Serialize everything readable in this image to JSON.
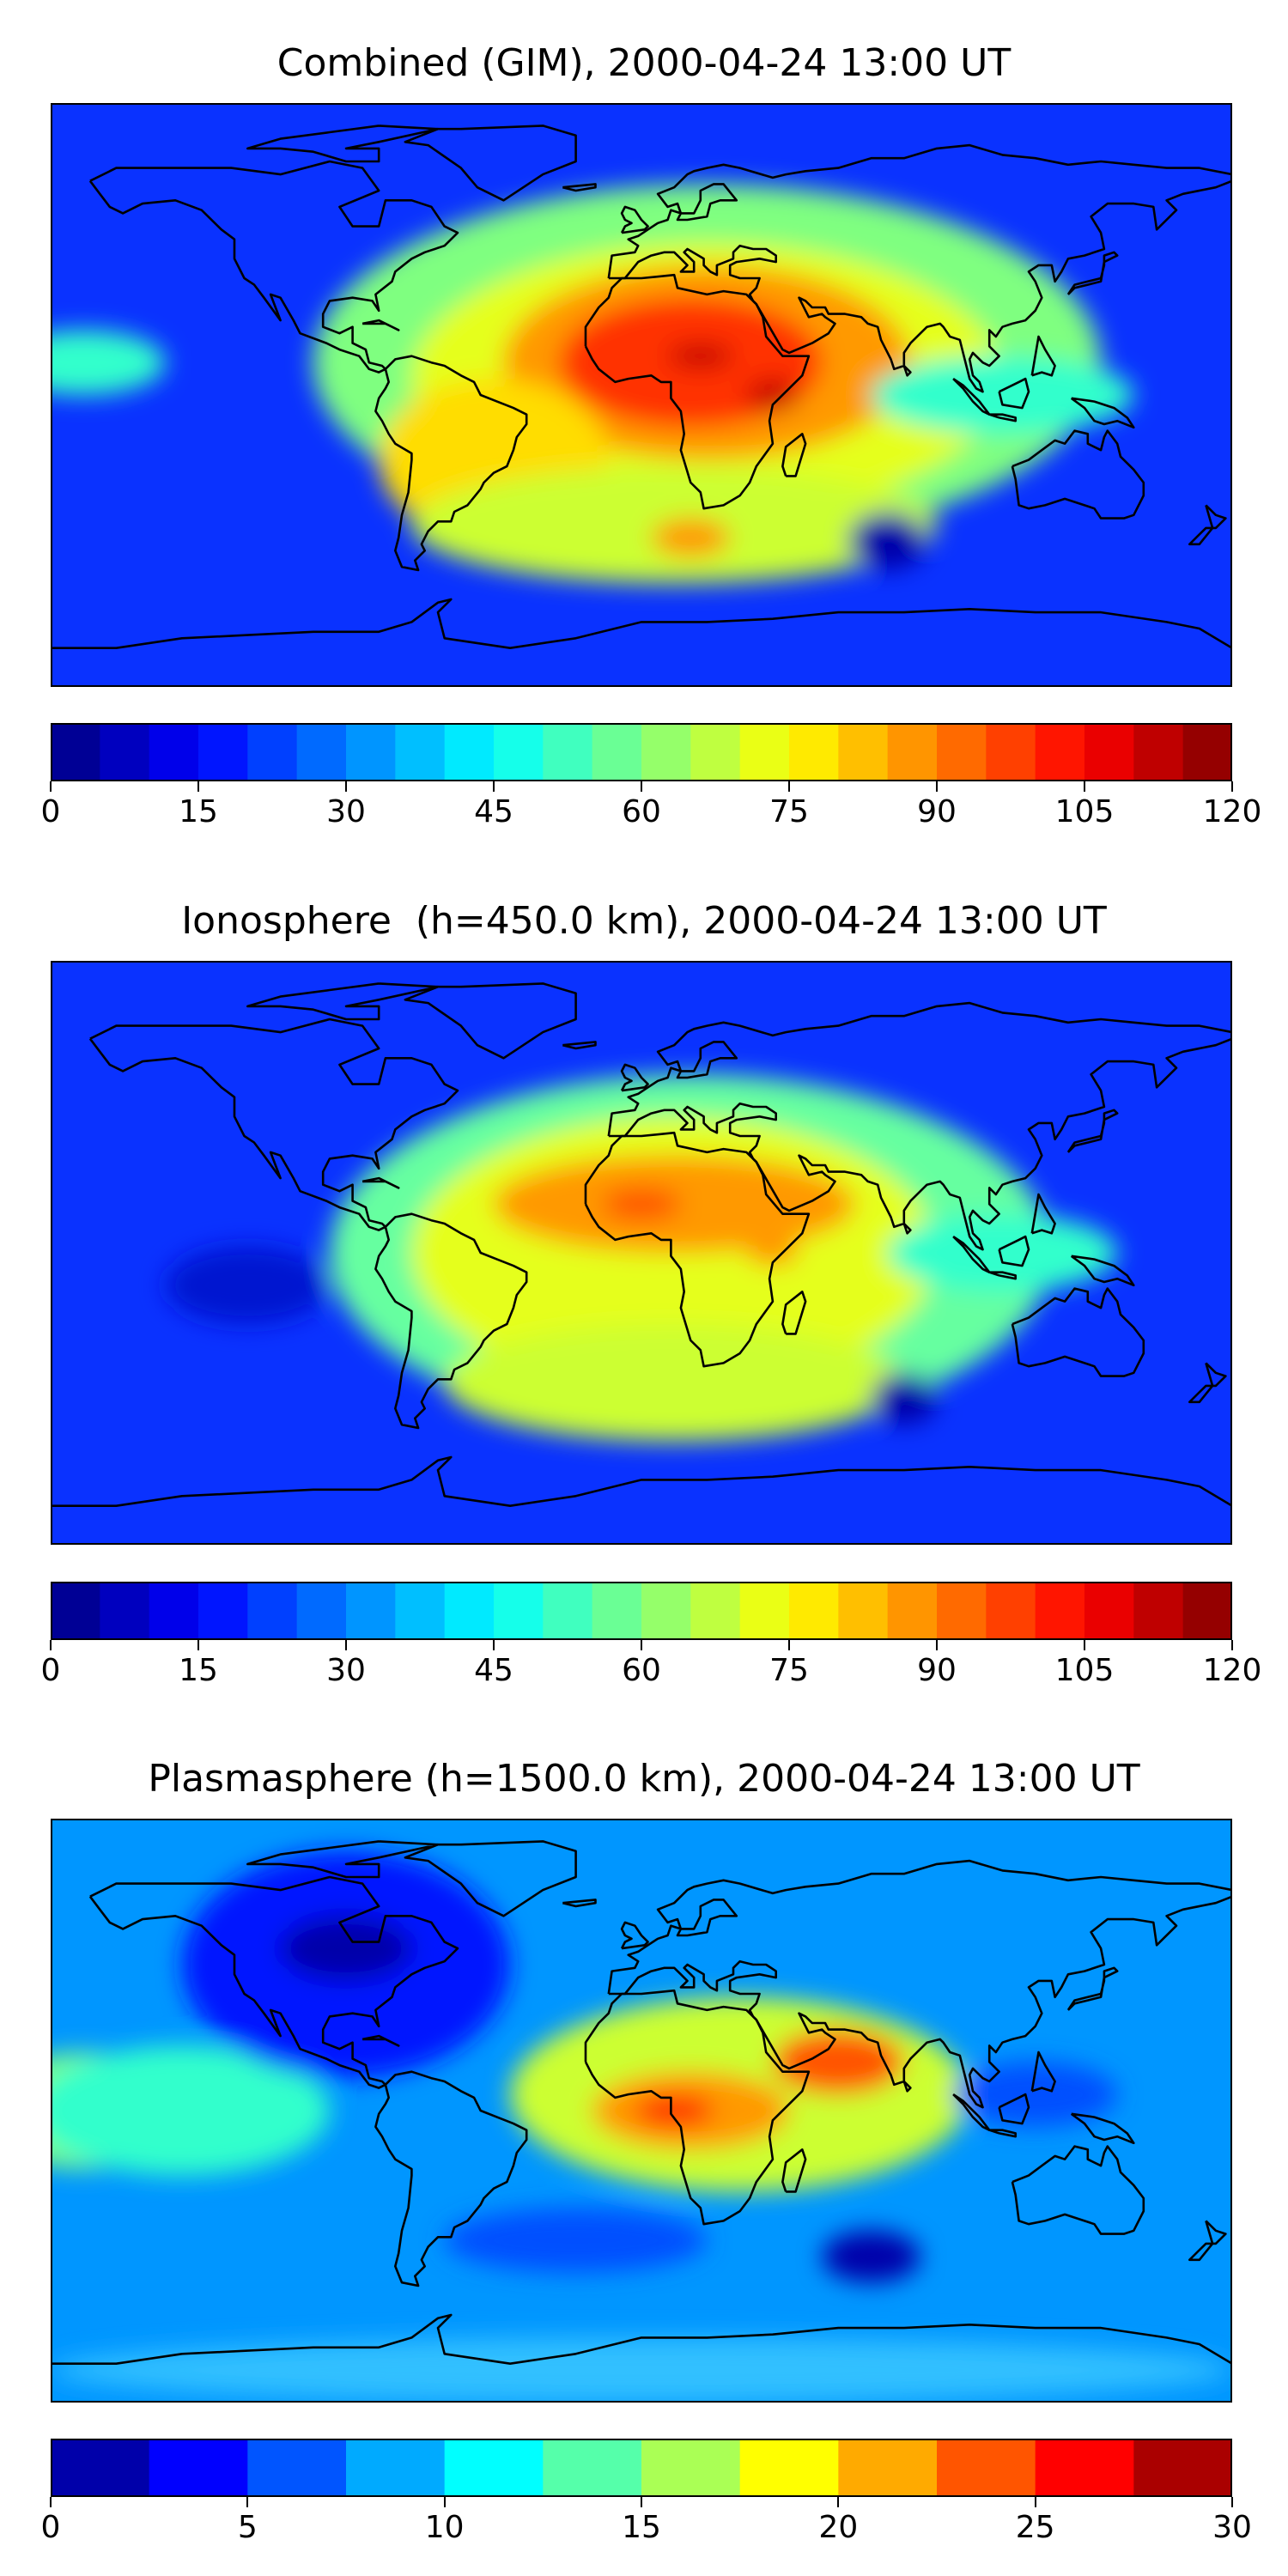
{
  "maps": [
    {
      "title": "Combined (GIM), 2000-04-24 13:00 UT",
      "colorbar": {
        "min": 0,
        "max": 120,
        "levels": 24,
        "tick_labels": [
          "0",
          "15",
          "30",
          "45",
          "60",
          "75",
          "90",
          "105",
          "120"
        ]
      },
      "background_color": "#0a32ff",
      "blobs": [
        {
          "lon": 20,
          "lat": 10,
          "rx": 120,
          "ry": 55,
          "color": "#7fff80"
        },
        {
          "lon": 20,
          "lat": 5,
          "rx": 90,
          "ry": 42,
          "color": "#e5ff1a"
        },
        {
          "lon": 20,
          "lat": 10,
          "rx": 62,
          "ry": 30,
          "color": "#ff9900"
        },
        {
          "lon": 15,
          "lat": 10,
          "rx": 40,
          "ry": 20,
          "color": "#ff3300"
        },
        {
          "lon": 18,
          "lat": 12,
          "rx": 10,
          "ry": 4,
          "color": "#c80000"
        },
        {
          "lon": 40,
          "lat": 0,
          "rx": 8,
          "ry": 5,
          "color": "#c80000"
        },
        {
          "lon": -45,
          "lat": -20,
          "rx": 35,
          "ry": 25,
          "color": "#ffdd00"
        },
        {
          "lon": 10,
          "lat": -40,
          "rx": 80,
          "ry": 18,
          "color": "#ccff33"
        },
        {
          "lon": 15,
          "lat": -44,
          "rx": 12,
          "ry": 6,
          "color": "#ff9900"
        },
        {
          "lon": 110,
          "lat": 0,
          "rx": 40,
          "ry": 12,
          "color": "#33ffcc"
        },
        {
          "lon": -170,
          "lat": 10,
          "rx": 25,
          "ry": 10,
          "color": "#33ffcc"
        },
        {
          "lon": 75,
          "lat": -45,
          "rx": 12,
          "ry": 9,
          "color": "#0000aa"
        }
      ]
    },
    {
      "title": "Ionosphere  (h=450.0 km), 2000-04-24 13:00 UT",
      "colorbar": {
        "min": 0,
        "max": 120,
        "levels": 24,
        "tick_labels": [
          "0",
          "15",
          "30",
          "45",
          "60",
          "75",
          "90",
          "105",
          "120"
        ]
      },
      "background_color": "#0a32ff",
      "blobs": [
        {
          "lon": 15,
          "lat": 0,
          "rx": 110,
          "ry": 55,
          "color": "#66ffa0"
        },
        {
          "lon": 10,
          "lat": 0,
          "rx": 80,
          "ry": 42,
          "color": "#e5ff1a"
        },
        {
          "lon": 10,
          "lat": 15,
          "rx": 55,
          "ry": 15,
          "color": "#ff9900"
        },
        {
          "lon": 0,
          "lat": 15,
          "rx": 12,
          "ry": 5,
          "color": "#ff5500"
        },
        {
          "lon": 40,
          "lat": 0,
          "rx": 8,
          "ry": 4,
          "color": "#ff9900"
        },
        {
          "lon": 10,
          "lat": -40,
          "rx": 70,
          "ry": 18,
          "color": "#ccff33"
        },
        {
          "lon": 110,
          "lat": 0,
          "rx": 35,
          "ry": 12,
          "color": "#33ffcc"
        },
        {
          "lon": 80,
          "lat": -45,
          "rx": 10,
          "ry": 8,
          "color": "#0000aa"
        },
        {
          "lon": -120,
          "lat": -10,
          "rx": 25,
          "ry": 12,
          "color": "#0014d0"
        }
      ]
    },
    {
      "title": "Plasmasphere (h=1500.0 km), 2000-04-24 13:00 UT",
      "colorbar": {
        "min": 0,
        "max": 30,
        "levels": 12,
        "tick_labels": [
          "0",
          "5",
          "10",
          "15",
          "20",
          "25",
          "30"
        ]
      },
      "background_color": "#0096ff",
      "blobs": [
        {
          "lon": -170,
          "lat": 0,
          "rx": 30,
          "ry": 18,
          "color": "#80ff80"
        },
        {
          "lon": -140,
          "lat": 0,
          "rx": 45,
          "ry": 20,
          "color": "#33ffcc"
        },
        {
          "lon": -90,
          "lat": 45,
          "rx": 50,
          "ry": 35,
          "color": "#0014ff"
        },
        {
          "lon": -90,
          "lat": 50,
          "rx": 20,
          "ry": 10,
          "color": "#0000aa"
        },
        {
          "lon": 30,
          "lat": 5,
          "rx": 70,
          "ry": 30,
          "color": "#ccff33"
        },
        {
          "lon": 15,
          "lat": 0,
          "rx": 30,
          "ry": 12,
          "color": "#ff9900"
        },
        {
          "lon": 10,
          "lat": 0,
          "rx": 12,
          "ry": 5,
          "color": "#ff3300"
        },
        {
          "lon": 60,
          "lat": 15,
          "rx": 20,
          "ry": 10,
          "color": "#ff5500"
        },
        {
          "lon": 120,
          "lat": 5,
          "rx": 25,
          "ry": 10,
          "color": "#0050ff"
        },
        {
          "lon": 70,
          "lat": -45,
          "rx": 15,
          "ry": 8,
          "color": "#0000aa"
        },
        {
          "lon": -20,
          "lat": -40,
          "rx": 40,
          "ry": 10,
          "color": "#0050ff"
        },
        {
          "lon": 0,
          "lat": -80,
          "rx": 180,
          "ry": 10,
          "color": "#33c0ff"
        }
      ]
    }
  ]
}
